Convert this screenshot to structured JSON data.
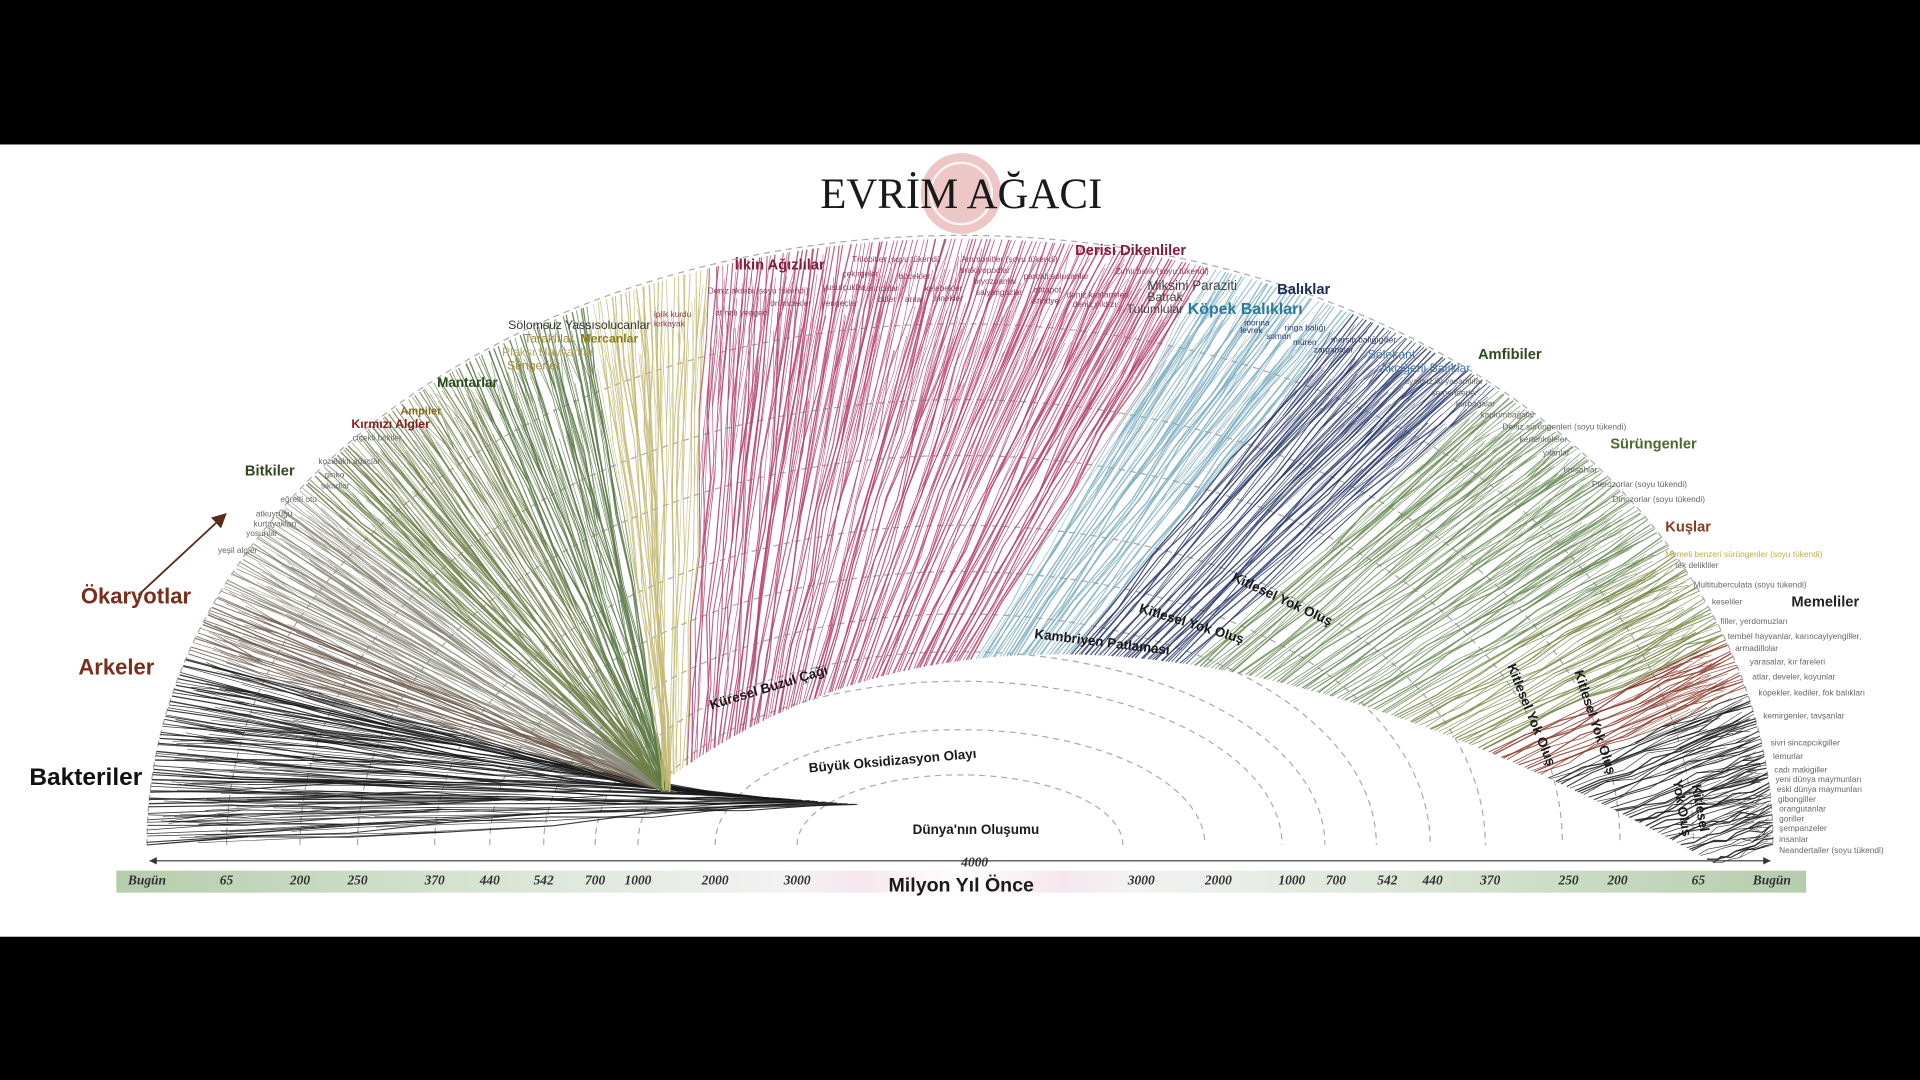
{
  "title": "EVRİM AĞACI",
  "groups": [
    "Bakteriler",
    "Arkeler",
    "Ökaryotlar",
    "Bitkiler",
    "Kırmızı Algler",
    "Ampiler",
    "Mantarlar",
    "Süngerler",
    "Plaksı Hayvanlar",
    "Taraklılar",
    "Mercanlar",
    "Sölomsuz Yassısolucanlar",
    "İlkin Ağızlılar",
    "Derisi Dikenliler",
    "Miksini Paraziti",
    "Batrak",
    "Tulumlular",
    "Köpek Balıkları",
    "Balıklar",
    "Sölekant",
    "Akciğerli Balıklar",
    "Amfibiler",
    "Sürüngenler",
    "Kuşlar",
    "Memeliler"
  ],
  "species": [
    "çiçekli bitkiler",
    "kozalaklı ağaçlar",
    "ginko",
    "sikadlar",
    "eğrelti otu",
    "atkuyruğu",
    "kurtayakları",
    "yosunlar",
    "yeşil algler",
    "iplik kurdu",
    "kırkayak",
    "at nalı yengeci",
    "Deniz akrebi (soyu tükendi)",
    "örümcekler",
    "yengeçler",
    "yusufçuklar",
    "çekirgeler",
    "Trilobitler (soyu tükendi)",
    "karıncalar",
    "arılar",
    "bitler",
    "böcekler",
    "kelebekler",
    "sinekler",
    "brakiyopodlar",
    "Ammonitler (soyu tükendi)",
    "bryozoanlar",
    "salyangozlar",
    "parçalı solucanlar",
    "ahtapot",
    "istiridye",
    "Zırhlı balık (soyu tükendi)",
    "deniz kestaneleri",
    "deniz yıldızı",
    "morina",
    "levrek",
    "ringa balığı",
    "somon",
    "müren",
    "mersin balığıgiller",
    "zarganalar",
    "ayaksız iki yaşamlılar",
    "semenderler",
    "kurbağalar",
    "kaplumbağalar",
    "Deniz sürüngenleri (soyu tükendi)",
    "kertenkeleler",
    "yılanlar",
    "timsahlar",
    "Pterozorlar (soyu tükendi)",
    "Dinozorlar (soyu tükendi)",
    "Memeli benzeri sürüngenler (soyu tükendi)",
    "tek delikliler",
    "Multituberculata (soyu tükendi)",
    "keseliler",
    "filler, yerdomuzları",
    "tembel hayvanlar, karıncayiyengiller,",
    "armadillolar",
    "yarasalar, kır fareleri",
    "atlar, develer, koyunlar",
    "köpekler, kediler, fok balıkları",
    "kemirgenler, tavşanlar",
    "sivri sincapcıkgiller",
    "lemurlar",
    "cadı makigiller",
    "yeni dünya maymunları",
    "eski dünya maymunları",
    "gibongiller",
    "orangutanlar",
    "goriller",
    "şempanzeler",
    "insanlar",
    "Neandertaller (soyu tükendi)"
  ],
  "events": [
    "Dünya'nın Oluşumu",
    "Büyük Oksidizasyon Olayı",
    "Küresel Buzul Çağı",
    "Kambriyen Patlaması",
    "Kitlesel Yok Oluş",
    "Kitlesel Yok Oluş",
    "Kitlesel Yok Oluş",
    "Kitlesel Yok Oluş",
    [
      "Kitlesel",
      "Yok Oluş"
    ]
  ],
  "axis": {
    "title": "Milyon Yıl Önce",
    "center": "4000",
    "left": [
      "Bugün",
      "65",
      "200",
      "250",
      "370",
      "440",
      "542",
      "700",
      "1000",
      "2000",
      "3000"
    ],
    "right": [
      "3000",
      "2000",
      "1000",
      "700",
      "542",
      "440",
      "370",
      "250",
      "200",
      "65",
      "Bugün"
    ]
  }
}
